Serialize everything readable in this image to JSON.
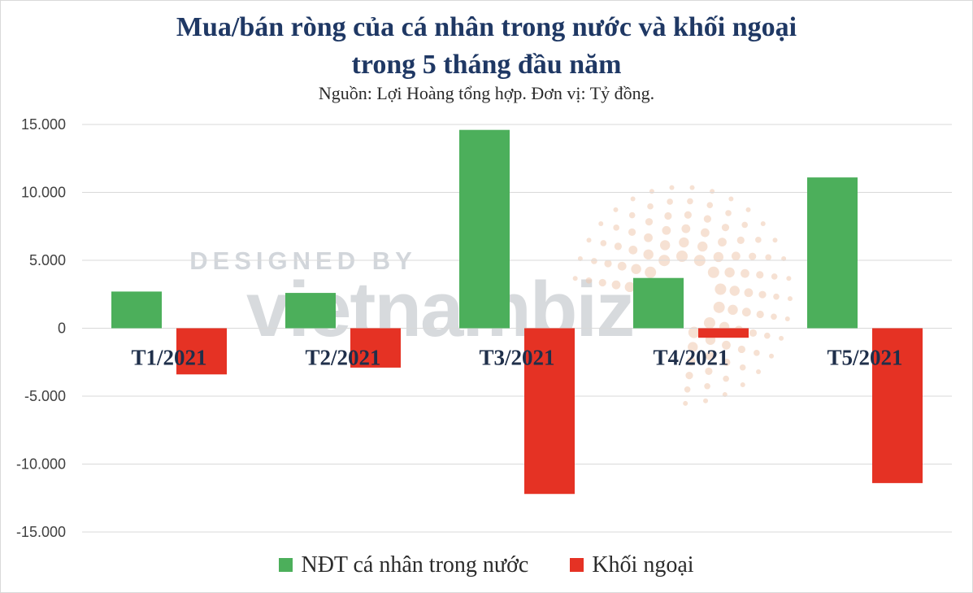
{
  "title_line1": "Mua/bán ròng của cá nhân trong nước và khối ngoại",
  "title_line2": "trong 5 tháng đầu năm",
  "subtitle": "Nguồn: Lợi Hoàng tổng hợp. Đơn vị: Tỷ đồng.",
  "watermark": {
    "line1": "DESIGNED BY",
    "logo": "vietnambiz"
  },
  "chart_data": {
    "type": "bar",
    "categories": [
      "T1/2021",
      "T2/2021",
      "T3/2021",
      "T4/2021",
      "T5/2021"
    ],
    "series": [
      {
        "name": "NĐT cá nhân trong nước",
        "color": "#4caf5b",
        "values": [
          2700,
          2600,
          14600,
          3700,
          11100
        ]
      },
      {
        "name": "Khối ngoại",
        "color": "#e53224",
        "values": [
          -3400,
          -2900,
          -12200,
          -700,
          -11400
        ]
      }
    ],
    "ylim": [
      -15000,
      15000
    ],
    "yticks": [
      15000,
      10000,
      5000,
      0,
      -5000,
      -10000,
      -15000
    ],
    "ytick_labels": [
      "15.000",
      "10.000",
      "5.000",
      "0",
      "-5.000",
      "-10.000",
      "-15.000"
    ],
    "grid": true,
    "legend_position": "bottom"
  }
}
